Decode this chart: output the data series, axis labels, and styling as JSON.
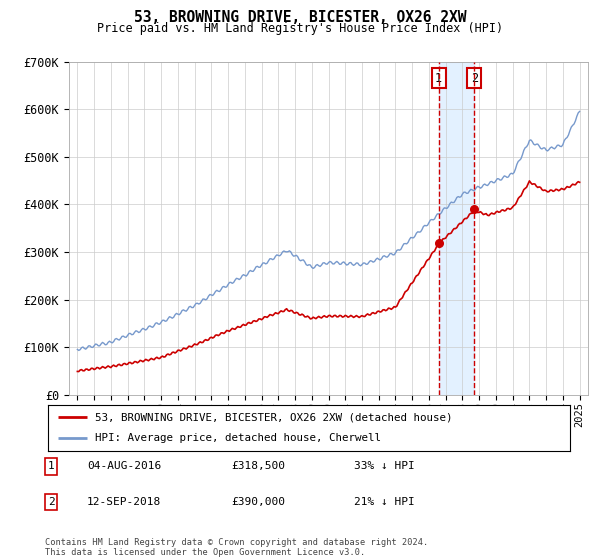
{
  "title": "53, BROWNING DRIVE, BICESTER, OX26 2XW",
  "subtitle": "Price paid vs. HM Land Registry's House Price Index (HPI)",
  "hpi_color": "#7799cc",
  "property_color": "#cc0000",
  "vline_color": "#cc0000",
  "shade_color": "#ddeeff",
  "ylim": [
    0,
    700000
  ],
  "xlim_start": 1994.5,
  "xlim_end": 2025.5,
  "marker1_date": 2016.58,
  "marker2_date": 2018.71,
  "sale1_price_val": 318500,
  "sale2_price_val": 390000,
  "sale1_label": "04-AUG-2016",
  "sale1_price": "£318,500",
  "sale1_hpi": "33% ↓ HPI",
  "sale2_label": "12-SEP-2018",
  "sale2_price": "£390,000",
  "sale2_hpi": "21% ↓ HPI",
  "legend_property": "53, BROWNING DRIVE, BICESTER, OX26 2XW (detached house)",
  "legend_hpi": "HPI: Average price, detached house, Cherwell",
  "footer": "Contains HM Land Registry data © Crown copyright and database right 2024.\nThis data is licensed under the Open Government Licence v3.0.",
  "yticks": [
    0,
    100000,
    200000,
    300000,
    400000,
    500000,
    600000,
    700000
  ],
  "ytick_labels": [
    "£0",
    "£100K",
    "£200K",
    "£300K",
    "£400K",
    "£500K",
    "£600K",
    "£700K"
  ]
}
